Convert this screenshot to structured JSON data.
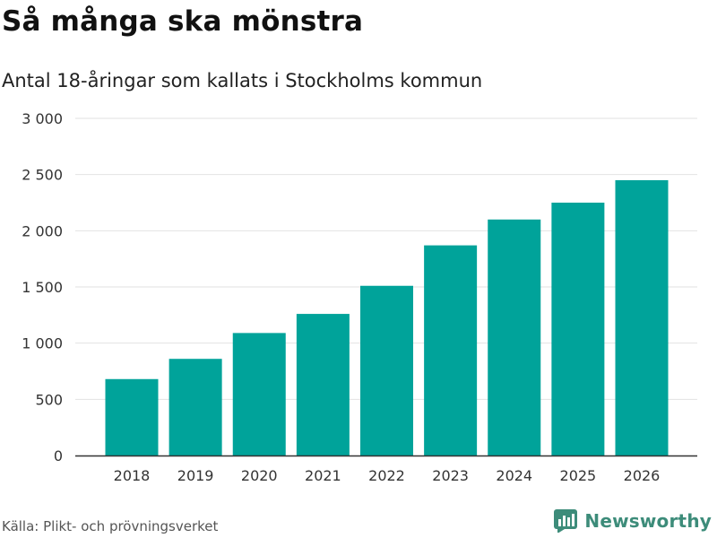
{
  "header": {
    "title": "Så många ska mönstra",
    "subtitle": "Antal 18-åringar som kallats i Stockholms kommun"
  },
  "footer": {
    "source": "Källa: Plikt- och prövningsverket",
    "brand": "Newsworthy",
    "brand_icon": "bar-chart-logo-icon"
  },
  "colors": {
    "bar": "#00a39a",
    "grid": "#e2e2e2",
    "axis": "#333333",
    "brand": "#3d8c7a"
  },
  "chart_data": {
    "type": "bar",
    "title": "Så många ska mönstra",
    "subtitle": "Antal 18-åringar som kallats i Stockholms kommun",
    "categories": [
      "2018",
      "2019",
      "2020",
      "2021",
      "2022",
      "2023",
      "2024",
      "2025",
      "2026"
    ],
    "values": [
      680,
      860,
      1090,
      1260,
      1510,
      1870,
      2100,
      2250,
      2450
    ],
    "xlabel": "",
    "ylabel": "",
    "ylim": [
      0,
      3000
    ],
    "yticks": [
      0,
      500,
      1000,
      1500,
      2000,
      2500,
      3000
    ],
    "ytick_labels": [
      "0",
      "500",
      "1 000",
      "1 500",
      "2 000",
      "2 500",
      "3 000"
    ],
    "grid": true,
    "legend": "none"
  }
}
